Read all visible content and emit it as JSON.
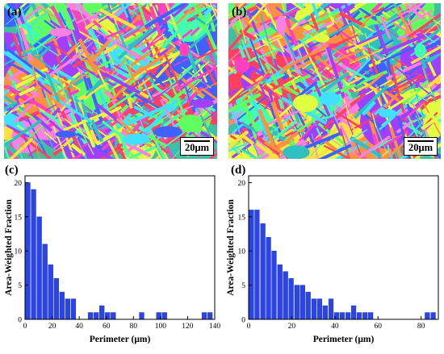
{
  "panels": {
    "a": {
      "letter": "(a)",
      "scalebar": "20μm"
    },
    "b": {
      "letter": "(b)",
      "scalebar": "20μm"
    },
    "c": {
      "letter": "(c)"
    },
    "d": {
      "letter": "(d)"
    }
  },
  "map_palette": [
    "#ff40c0",
    "#40e0ff",
    "#60ff60",
    "#ffe040",
    "#a040ff",
    "#ff4060",
    "#40ffb0",
    "#4060ff",
    "#ff9040",
    "#e0ff40",
    "#ff80e0",
    "#30c0c0"
  ],
  "chart_data": [
    {
      "panel": "(c)",
      "type": "bar",
      "xlabel": "Perimeter (μm)",
      "ylabel": "Area-Weighted Fraction",
      "xlim": [
        0,
        140
      ],
      "ylim": [
        0,
        21
      ],
      "xticks": [
        0,
        20,
        40,
        60,
        80,
        100,
        120,
        140
      ],
      "yticks": [
        0,
        5,
        10,
        15,
        20
      ],
      "bin_width": 4.2,
      "bar_color": "#2a44e8",
      "x": [
        2.1,
        6.3,
        10.5,
        14.7,
        18.9,
        23.1,
        27.3,
        31.5,
        35.7,
        39.9,
        44.1,
        48.3,
        52.5,
        56.7,
        60.9,
        65.1,
        69.3,
        73.5,
        77.7,
        81.9,
        86.1,
        90.3,
        94.5,
        98.7,
        102.9,
        107.1,
        111.3,
        115.5,
        119.7,
        123.9,
        128.1,
        132.3,
        136.5
      ],
      "values": [
        20,
        19,
        15,
        11,
        8,
        6,
        4,
        3,
        3,
        0,
        0,
        1,
        1,
        2,
        1,
        1,
        0,
        0,
        0,
        0,
        1,
        0,
        0,
        1,
        1,
        0,
        0,
        0,
        0,
        0,
        0,
        1,
        1
      ]
    },
    {
      "panel": "(d)",
      "type": "bar",
      "xlabel": "Perimeter (μm)",
      "ylabel": "Area-Weighted Fraction",
      "xlim": [
        0,
        88
      ],
      "ylim": [
        0,
        21
      ],
      "xticks": [
        0,
        20,
        40,
        60,
        80
      ],
      "yticks": [
        0,
        5,
        10,
        15,
        20
      ],
      "bin_width": 2.63,
      "bar_color": "#2a44e8",
      "x": [
        1.3,
        3.9,
        6.6,
        9.2,
        11.8,
        14.5,
        17.1,
        19.7,
        22.4,
        25.0,
        27.6,
        30.3,
        32.9,
        35.5,
        38.2,
        40.8,
        43.4,
        46.1,
        48.7,
        51.3,
        54.0,
        56.6,
        59.2,
        61.9,
        64.5,
        67.1,
        69.8,
        72.4,
        75.0,
        77.7,
        80.3,
        82.9,
        85.6
      ],
      "values": [
        16,
        16,
        14,
        12,
        10,
        8,
        7,
        6,
        5,
        5,
        4,
        3,
        3,
        2,
        3,
        1,
        1,
        1,
        2,
        1,
        1,
        1,
        0,
        0,
        0,
        0,
        0,
        0,
        0,
        0,
        0,
        1,
        1
      ]
    }
  ]
}
